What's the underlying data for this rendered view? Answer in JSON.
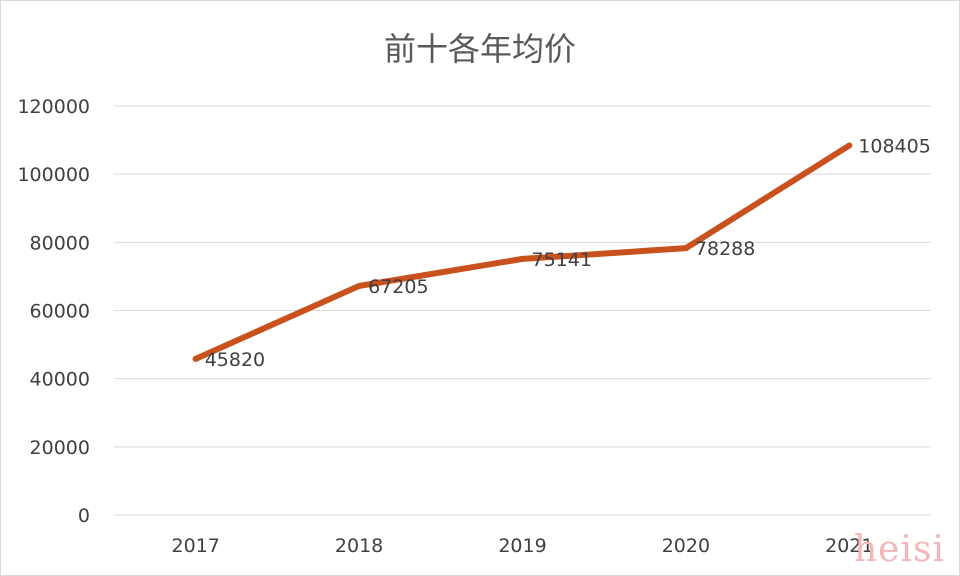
{
  "chart_data": {
    "type": "line",
    "title": "前十各年均价",
    "categories": [
      "2017",
      "2018",
      "2019",
      "2020",
      "2021"
    ],
    "series": [
      {
        "values": [
          45820,
          67205,
          75141,
          78288,
          108405
        ],
        "data_labels": [
          "45820",
          "67205",
          "75141",
          "78288",
          "108405"
        ]
      }
    ],
    "xlabel": "",
    "ylabel": "",
    "ylim": [
      0,
      120000
    ],
    "yticks": [
      0,
      20000,
      40000,
      60000,
      80000,
      100000,
      120000
    ],
    "ytick_labels": [
      "0",
      "20000",
      "40000",
      "60000",
      "80000",
      "100000",
      "120000"
    ],
    "grid": true,
    "legend": "none",
    "colors": {
      "line": "#c9511e",
      "grid": "#d9d9d9",
      "text": "#404040",
      "title": "#595959"
    }
  },
  "watermark": "heisi"
}
